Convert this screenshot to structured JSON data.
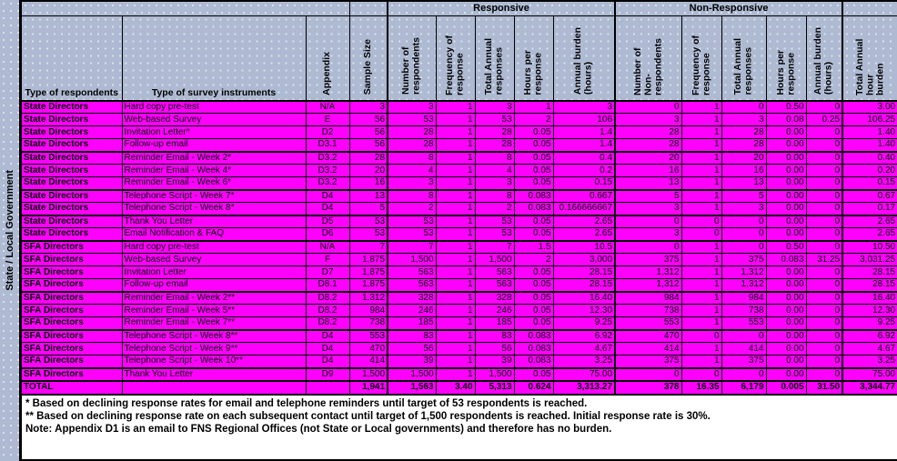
{
  "left_band": {
    "label": "State / Local Government"
  },
  "colors": {
    "header_bg": "#aebad2",
    "row_bg": "#ff00ff",
    "border": "#000000",
    "notes_bg": "#ffffff"
  },
  "table": {
    "group_headers": {
      "responsive": "Responsive",
      "non_responsive": "Non-Responsive"
    },
    "columns": [
      "Type of respondents",
      "Type of survey instruments",
      "Appendix",
      "Sample Size",
      "Number of\nrespondents",
      "Frequency of\nresponse",
      "Total Annual\nresponses",
      "Hours per\nresponse",
      "Annual burden\n(hours)",
      "Number of\nNon-respondents",
      "Frequency of\nresponse",
      "Total Annual\nresponses",
      "Hours per\nresponse",
      "Annual burden\n(hours)",
      "Total Annual hour\nburden"
    ],
    "rows": [
      {
        "respondent": "State Directors",
        "instrument": "Hard copy pre-test",
        "appendix": "N/A",
        "sample": "3",
        "responsive": [
          "3",
          "1",
          "3",
          "1",
          "3"
        ],
        "non_responsive": [
          "0",
          "1",
          "0",
          "0.50",
          "0"
        ],
        "total": "3.00",
        "section_start": false
      },
      {
        "respondent": "State Directors",
        "instrument": "Web-based Survey",
        "appendix": "E",
        "sample": "56",
        "responsive": [
          "53",
          "1",
          "53",
          "2",
          "106"
        ],
        "non_responsive": [
          "3",
          "1",
          "3",
          "0.08",
          "0.25"
        ],
        "total": "106.25",
        "section_start": false
      },
      {
        "respondent": "State Directors",
        "instrument": "Invitation Letter*",
        "appendix": "D2",
        "sample": "56",
        "responsive": [
          "28",
          "1",
          "28",
          "0.05",
          "1.4"
        ],
        "non_responsive": [
          "28",
          "1",
          "28",
          "0.00",
          "0"
        ],
        "total": "1.40",
        "section_start": false
      },
      {
        "respondent": "State Directors",
        "instrument": "Follow-up email",
        "appendix": "D3.1",
        "sample": "56",
        "responsive": [
          "28",
          "1",
          "28",
          "0.05",
          "1.4"
        ],
        "non_responsive": [
          "28",
          "1",
          "28",
          "0.00",
          "0"
        ],
        "total": "1.40",
        "section_start": false
      },
      {
        "respondent": "State Directors",
        "instrument": "Reminder Email - Week 2*",
        "appendix": "D3.2",
        "sample": "28",
        "responsive": [
          "8",
          "1",
          "8",
          "0.05",
          "0.4"
        ],
        "non_responsive": [
          "20",
          "1",
          "20",
          "0.00",
          "0"
        ],
        "total": "0.40",
        "section_start": true
      },
      {
        "respondent": "State Directors",
        "instrument": "Reminder Email - Week 4*",
        "appendix": "D3.2",
        "sample": "20",
        "responsive": [
          "4",
          "1",
          "4",
          "0.05",
          "0.2"
        ],
        "non_responsive": [
          "16",
          "1",
          "16",
          "0.00",
          "0"
        ],
        "total": "0.20",
        "section_start": false
      },
      {
        "respondent": "State Directors",
        "instrument": "Reminder Email - Week 6*",
        "appendix": "D3.2",
        "sample": "16",
        "responsive": [
          "3",
          "1",
          "3",
          "0.05",
          "0.15"
        ],
        "non_responsive": [
          "13",
          "1",
          "13",
          "0.00",
          "0"
        ],
        "total": "0.15",
        "section_start": false
      },
      {
        "respondent": "State Directors",
        "instrument": "Telephone Script - Week 7*",
        "appendix": "D4",
        "sample": "13",
        "responsive": [
          "8",
          "1",
          "8",
          "0.083",
          "0.667"
        ],
        "non_responsive": [
          "5",
          "1",
          "5",
          "0.00",
          "0"
        ],
        "total": "0.67",
        "section_start": true
      },
      {
        "respondent": "State Directors",
        "instrument": "Telephone Script - Week 8*",
        "appendix": "D4",
        "sample": "5",
        "responsive": [
          "2",
          "1",
          "2",
          "0.083",
          "0.166666667"
        ],
        "non_responsive": [
          "3",
          "1",
          "3",
          "0.00",
          "0"
        ],
        "total": "0.17",
        "section_start": false
      },
      {
        "respondent": "State Directors",
        "instrument": "Thank You Letter",
        "appendix": "D5",
        "sample": "53",
        "responsive": [
          "53",
          "1",
          "53",
          "0.05",
          "2.65"
        ],
        "non_responsive": [
          "0",
          "0",
          "0",
          "0.00",
          "0"
        ],
        "total": "2.65",
        "section_start": true
      },
      {
        "respondent": "State Directors",
        "instrument": "Email Notification & FAQ",
        "appendix": "D6",
        "sample": "53",
        "responsive": [
          "53",
          "1",
          "53",
          "0.05",
          "2.65"
        ],
        "non_responsive": [
          "3",
          "0",
          "0",
          "0.00",
          "0"
        ],
        "total": "2.65",
        "section_start": false
      },
      {
        "respondent": "SFA Directors",
        "instrument": "Hard copy pre-test",
        "appendix": "N/A",
        "sample": "7",
        "responsive": [
          "7",
          "1",
          "7",
          "1.5",
          "10.5"
        ],
        "non_responsive": [
          "0",
          "1",
          "0",
          "0.50",
          "0"
        ],
        "total": "10.50",
        "section_start": true
      },
      {
        "respondent": "SFA Directors",
        "instrument": "Web-based Survey",
        "appendix": "F",
        "sample": "1,875",
        "responsive": [
          "1,500",
          "1",
          "1,500",
          "2",
          "3,000"
        ],
        "non_responsive": [
          "375",
          "1",
          "375",
          "0.083",
          "31.25"
        ],
        "total": "3,031.25",
        "section_start": false
      },
      {
        "respondent": "SFA Directors",
        "instrument": "Invitation Letter",
        "appendix": "D7",
        "sample": "1,875",
        "responsive": [
          "563",
          "1",
          "563",
          "0.05",
          "28.15"
        ],
        "non_responsive": [
          "1,312",
          "1",
          "1,312",
          "0.00",
          "0"
        ],
        "total": "28.15",
        "section_start": false
      },
      {
        "respondent": "SFA Directors",
        "instrument": "Follow-up email",
        "appendix": "D8.1",
        "sample": "1,875",
        "responsive": [
          "563",
          "1",
          "563",
          "0.05",
          "28.15"
        ],
        "non_responsive": [
          "1,312",
          "1",
          "1,312",
          "0.00",
          "0"
        ],
        "total": "28.15",
        "section_start": false
      },
      {
        "respondent": "SFA Directors",
        "instrument": "Reminder Email - Week 2**",
        "appendix": "D8.2",
        "sample": "1,312",
        "responsive": [
          "328",
          "1",
          "328",
          "0.05",
          "16.40"
        ],
        "non_responsive": [
          "984",
          "1",
          "984",
          "0.00",
          "0"
        ],
        "total": "16.40",
        "section_start": true
      },
      {
        "respondent": "SFA Directors",
        "instrument": "Reminder Email - Week 5**",
        "appendix": "D8.2",
        "sample": "984",
        "responsive": [
          "246",
          "1",
          "246",
          "0.05",
          "12.30"
        ],
        "non_responsive": [
          "738",
          "1",
          "738",
          "0.00",
          "0"
        ],
        "total": "12.30",
        "section_start": false
      },
      {
        "respondent": "SFA Directors",
        "instrument": "Reminder Email - Week 7**",
        "appendix": "D8.2",
        "sample": "738",
        "responsive": [
          "185",
          "1",
          "185",
          "0.05",
          "9.25"
        ],
        "non_responsive": [
          "553",
          "1",
          "553",
          "0.00",
          "0"
        ],
        "total": "9.25",
        "section_start": false
      },
      {
        "respondent": "SFA Directors",
        "instrument": "Telephone Script - Week 8**",
        "appendix": "D4",
        "sample": "553",
        "responsive": [
          "83",
          "1",
          "83",
          "0.083",
          "6.92"
        ],
        "non_responsive": [
          "470",
          "0",
          "0",
          "0.00",
          "0"
        ],
        "total": "6.92",
        "section_start": true
      },
      {
        "respondent": "SFA Directors",
        "instrument": "Telephone Script - Week 9**",
        "appendix": "D4",
        "sample": "470",
        "responsive": [
          "56",
          "1",
          "56",
          "0.083",
          "4.67"
        ],
        "non_responsive": [
          "414",
          "1",
          "414",
          "0.00",
          "0"
        ],
        "total": "4.67",
        "section_start": false
      },
      {
        "respondent": "SFA Directors",
        "instrument": "Telephone Script - Week 10**",
        "appendix": "D4",
        "sample": "414",
        "responsive": [
          "39",
          "1",
          "39",
          "0.083",
          "3.25"
        ],
        "non_responsive": [
          "375",
          "1",
          "375",
          "0.00",
          "0"
        ],
        "total": "3.25",
        "section_start": false
      },
      {
        "respondent": "SFA Directors",
        "instrument": "Thank You Letter",
        "appendix": "D9",
        "sample": "1,500",
        "responsive": [
          "1,500",
          "1",
          "1,500",
          "0.05",
          "75.00"
        ],
        "non_responsive": [
          "0",
          "0",
          "0",
          "0.00",
          "0"
        ],
        "total": "75.00",
        "section_start": true
      }
    ],
    "total_row": {
      "label": "TOTAL",
      "sample": "1,941",
      "responsive": [
        "1,563",
        "3.40",
        "5,313",
        "0.624",
        "3,313.27"
      ],
      "non_responsive": [
        "378",
        "16.35",
        "6,179",
        "0.005",
        "31.50"
      ],
      "total": "3,344.77"
    }
  },
  "notes": [
    "* Based on declining response rates for email and telephone reminders until target of 53 respondents is reached.",
    "**  Based on declining response rate on each subsequent contact until target of 1,500 respondents is reached. Initial response rate is 30%.",
    "Note:  Appendix D1 is an email to FNS Regional Offices (not State or Local governments) and therefore has no burden."
  ]
}
